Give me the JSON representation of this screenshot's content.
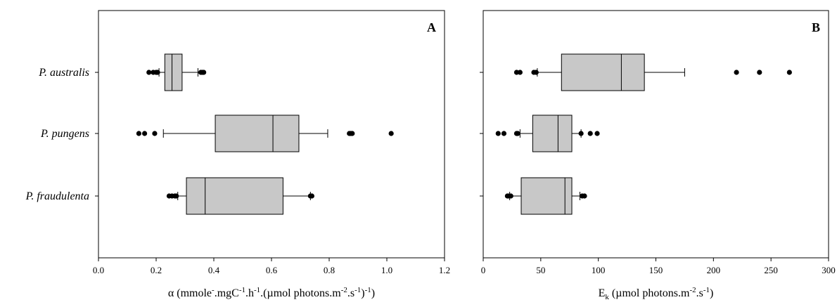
{
  "chart_data": [
    {
      "type": "boxplot",
      "orientation": "horizontal",
      "panel_label": "A",
      "categories": [
        "P. australis",
        "P. pungens",
        "P. fraudulenta"
      ],
      "xlim": [
        0.0,
        1.2
      ],
      "xticks": [
        0.0,
        0.2,
        0.4,
        0.6,
        0.8,
        1.0,
        1.2
      ],
      "xtick_labels": [
        "0.0",
        "0.2",
        "0.4",
        "0.6",
        "0.8",
        "1.0",
        "1.2"
      ],
      "xlabel": {
        "symbol": "α",
        "parts": [
          {
            "t": "(mmole"
          },
          {
            "t": "-",
            "s": "sup"
          },
          {
            "t": ".mgC"
          },
          {
            "t": "-1",
            "s": "sup"
          },
          {
            "t": ".h"
          },
          {
            "t": "-1",
            "s": "sup"
          },
          {
            "t": ".(µmol photons.m"
          },
          {
            "t": "-2",
            "s": "sup"
          },
          {
            "t": ".s"
          },
          {
            "t": "-1",
            "s": "sup"
          },
          {
            "t": ")"
          },
          {
            "t": "-1",
            "s": "sup"
          },
          {
            "t": ")"
          }
        ]
      },
      "boxes": [
        {
          "category": "P. australis",
          "whisker_low": 0.21,
          "q1": 0.23,
          "median": 0.255,
          "q3": 0.29,
          "whisker_high": 0.345,
          "outliers": [
            0.175,
            0.19,
            0.2,
            0.205,
            0.355,
            0.36,
            0.365
          ]
        },
        {
          "category": "P. pungens",
          "whisker_low": 0.225,
          "q1": 0.405,
          "median": 0.605,
          "q3": 0.695,
          "whisker_high": 0.795,
          "outliers": [
            0.14,
            0.16,
            0.195,
            0.87,
            0.875,
            0.88,
            1.015
          ]
        },
        {
          "category": "P. fraudulenta",
          "whisker_low": 0.275,
          "q1": 0.305,
          "median": 0.37,
          "q3": 0.64,
          "whisker_high": 0.735,
          "outliers": [
            0.245,
            0.255,
            0.265,
            0.27,
            0.735,
            0.74
          ]
        }
      ]
    },
    {
      "type": "boxplot",
      "orientation": "horizontal",
      "panel_label": "B",
      "categories": [
        "P. australis",
        "P. pungens",
        "P. fraudulenta"
      ],
      "xlim": [
        0,
        300
      ],
      "xticks": [
        0,
        50,
        100,
        150,
        200,
        250,
        300
      ],
      "xtick_labels": [
        "0",
        "50",
        "100",
        "150",
        "200",
        "250",
        "300"
      ],
      "xlabel": {
        "symbol": "E",
        "parts": [
          {
            "t": "k",
            "s": "sub"
          },
          {
            "t": " (µmol photons.m"
          },
          {
            "t": "-2",
            "s": "sup"
          },
          {
            "t": ".s"
          },
          {
            "t": "-1",
            "s": "sup"
          },
          {
            "t": ")"
          }
        ]
      },
      "boxes": [
        {
          "category": "P. australis",
          "whisker_low": 47,
          "q1": 68,
          "median": 120,
          "q3": 140,
          "whisker_high": 175,
          "outliers": [
            29,
            32,
            44,
            46,
            220,
            240,
            266
          ]
        },
        {
          "category": "P. pungens",
          "whisker_low": 32,
          "q1": 43,
          "median": 65,
          "q3": 77,
          "whisker_high": 85,
          "outliers": [
            13,
            18,
            29,
            30,
            85,
            93,
            99
          ]
        },
        {
          "category": "P. fraudulenta",
          "whisker_low": 23,
          "q1": 33,
          "median": 71,
          "q3": 77,
          "whisker_high": 84,
          "outliers": [
            21,
            22,
            24,
            86,
            88
          ]
        }
      ]
    }
  ]
}
